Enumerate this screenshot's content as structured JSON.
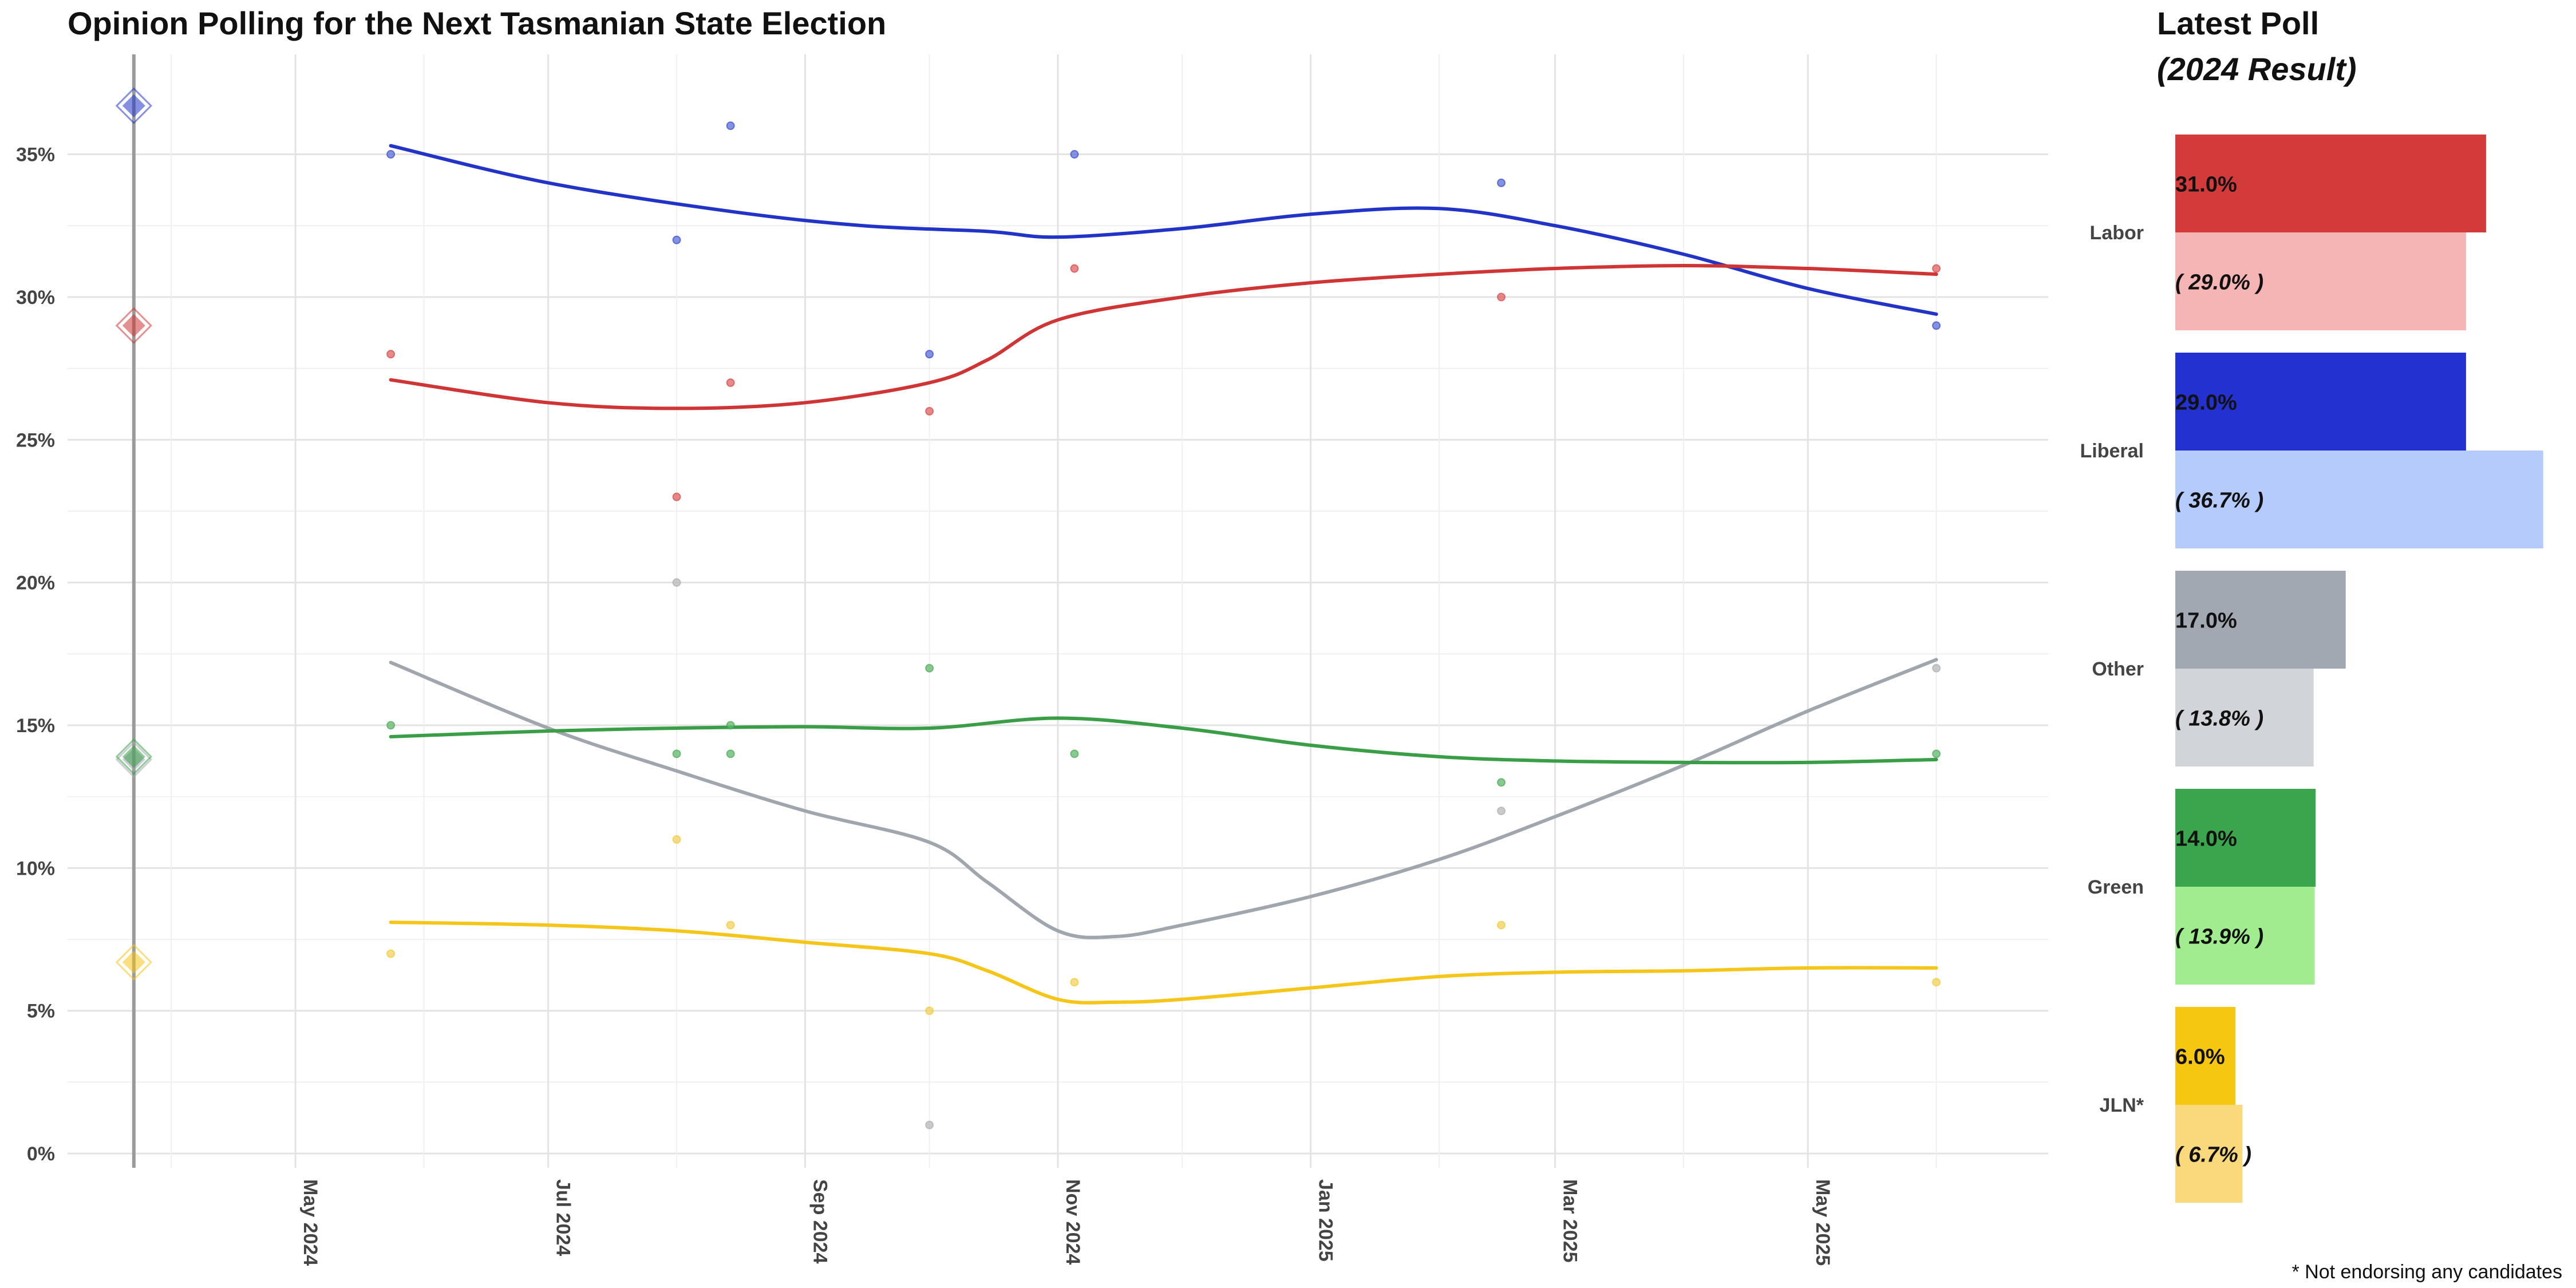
{
  "chart_data": {
    "type": "line",
    "title": "Opinion Polling for the Next Tasmanian State Election",
    "ylim": [
      -0.5,
      38.5
    ],
    "y_ticks": [
      0,
      5,
      10,
      15,
      20,
      25,
      30,
      35
    ],
    "y_tick_labels": [
      "0%",
      "5%",
      "10%",
      "15%",
      "20%",
      "25%",
      "30%",
      "35%"
    ],
    "x_domain": [
      "2024-03-07",
      "2025-06-28"
    ],
    "x_ticks": [
      "2024-05-01",
      "2024-07-01",
      "2024-09-01",
      "2024-11-01",
      "2025-01-01",
      "2025-03-01",
      "2025-05-01"
    ],
    "x_tick_labels": [
      "May 2024",
      "Jul 2024",
      "Sep 2024",
      "Nov 2024",
      "Jan 2025",
      "Mar 2025",
      "May 2025"
    ],
    "x_minor_ticks": [
      "2024-04-01",
      "2024-06-01",
      "2024-08-01",
      "2024-10-01",
      "2024-12-01",
      "2025-02-01",
      "2025-04-01",
      "2025-06-01"
    ],
    "grid": true,
    "election_date": "2024-03-23",
    "series": [
      {
        "name": "Liberal",
        "color": "#2234c8",
        "point_color": "#5a6fd8",
        "result": 36.7,
        "points": [
          [
            "2024-05-24",
            35
          ],
          [
            "2024-08-01",
            32
          ],
          [
            "2024-08-14",
            36
          ],
          [
            "2024-10-01",
            28
          ],
          [
            "2024-11-05",
            35
          ],
          [
            "2025-02-16",
            34
          ],
          [
            "2025-06-01",
            29
          ]
        ],
        "trend": [
          [
            "2024-05-24",
            35.3
          ],
          [
            "2024-07-01",
            34.0
          ],
          [
            "2024-08-14",
            33.0
          ],
          [
            "2024-09-15",
            32.5
          ],
          [
            "2024-10-15",
            32.3
          ],
          [
            "2024-11-01",
            32.1
          ],
          [
            "2024-12-01",
            32.4
          ],
          [
            "2025-01-01",
            32.9
          ],
          [
            "2025-02-01",
            33.1
          ],
          [
            "2025-03-01",
            32.5
          ],
          [
            "2025-04-01",
            31.5
          ],
          [
            "2025-05-01",
            30.3
          ],
          [
            "2025-06-01",
            29.4
          ]
        ]
      },
      {
        "name": "Labor",
        "color": "#d03535",
        "point_color": "#e06060",
        "result": 29.0,
        "points": [
          [
            "2024-05-24",
            28
          ],
          [
            "2024-08-01",
            23
          ],
          [
            "2024-08-14",
            27
          ],
          [
            "2024-10-01",
            26
          ],
          [
            "2024-11-05",
            31
          ],
          [
            "2025-02-16",
            30
          ],
          [
            "2025-06-01",
            31
          ]
        ],
        "trend": [
          [
            "2024-05-24",
            27.1
          ],
          [
            "2024-07-01",
            26.3
          ],
          [
            "2024-08-01",
            26.1
          ],
          [
            "2024-09-01",
            26.3
          ],
          [
            "2024-10-01",
            27.0
          ],
          [
            "2024-10-15",
            27.8
          ],
          [
            "2024-11-01",
            29.2
          ],
          [
            "2024-12-01",
            30.0
          ],
          [
            "2025-01-01",
            30.5
          ],
          [
            "2025-02-01",
            30.8
          ],
          [
            "2025-03-01",
            31.0
          ],
          [
            "2025-04-01",
            31.1
          ],
          [
            "2025-05-01",
            31.0
          ],
          [
            "2025-06-01",
            30.8
          ]
        ]
      },
      {
        "name": "Other",
        "color": "#a0a6ad",
        "point_color": "#b8b8b8",
        "result": 13.8,
        "points": [
          [
            "2024-08-01",
            20
          ],
          [
            "2024-10-01",
            1
          ],
          [
            "2025-02-16",
            12
          ],
          [
            "2025-06-01",
            17
          ]
        ],
        "trend": [
          [
            "2024-05-24",
            17.2
          ],
          [
            "2024-07-01",
            14.9
          ],
          [
            "2024-08-01",
            13.4
          ],
          [
            "2024-09-01",
            12.0
          ],
          [
            "2024-10-01",
            10.9
          ],
          [
            "2024-10-15",
            9.5
          ],
          [
            "2024-11-01",
            7.8
          ],
          [
            "2024-11-15",
            7.6
          ],
          [
            "2024-12-01",
            8.0
          ],
          [
            "2025-01-01",
            9.0
          ],
          [
            "2025-02-01",
            10.3
          ],
          [
            "2025-03-01",
            11.8
          ],
          [
            "2025-04-01",
            13.6
          ],
          [
            "2025-05-01",
            15.5
          ],
          [
            "2025-06-01",
            17.3
          ]
        ]
      },
      {
        "name": "Green",
        "color": "#3a9e47",
        "point_color": "#5fb86a",
        "result": 13.9,
        "points": [
          [
            "2024-05-24",
            15
          ],
          [
            "2024-08-01",
            14
          ],
          [
            "2024-08-14",
            15
          ],
          [
            "2024-08-14",
            14
          ],
          [
            "2024-10-01",
            17
          ],
          [
            "2024-11-05",
            14
          ],
          [
            "2025-02-16",
            13
          ],
          [
            "2025-06-01",
            14
          ]
        ],
        "trend": [
          [
            "2024-05-24",
            14.6
          ],
          [
            "2024-07-01",
            14.8
          ],
          [
            "2024-08-01",
            14.9
          ],
          [
            "2024-09-01",
            14.95
          ],
          [
            "2024-10-01",
            14.9
          ],
          [
            "2024-11-01",
            15.25
          ],
          [
            "2024-12-01",
            14.9
          ],
          [
            "2025-01-01",
            14.3
          ],
          [
            "2025-02-01",
            13.9
          ],
          [
            "2025-03-01",
            13.75
          ],
          [
            "2025-04-01",
            13.7
          ],
          [
            "2025-05-01",
            13.7
          ],
          [
            "2025-06-01",
            13.8
          ]
        ]
      },
      {
        "name": "JLN*",
        "color": "#f5c518",
        "point_color": "#f0d060",
        "result": 6.7,
        "points": [
          [
            "2024-05-24",
            7
          ],
          [
            "2024-08-01",
            11
          ],
          [
            "2024-08-14",
            8
          ],
          [
            "2024-10-01",
            5
          ],
          [
            "2024-11-05",
            6
          ],
          [
            "2025-02-16",
            8
          ],
          [
            "2025-06-01",
            6
          ]
        ],
        "trend": [
          [
            "2024-05-24",
            8.1
          ],
          [
            "2024-07-01",
            8.0
          ],
          [
            "2024-08-01",
            7.8
          ],
          [
            "2024-09-01",
            7.4
          ],
          [
            "2024-10-01",
            7.0
          ],
          [
            "2024-10-15",
            6.4
          ],
          [
            "2024-11-01",
            5.4
          ],
          [
            "2024-11-15",
            5.3
          ],
          [
            "2024-12-01",
            5.4
          ],
          [
            "2025-01-01",
            5.8
          ],
          [
            "2025-02-01",
            6.2
          ],
          [
            "2025-03-01",
            6.35
          ],
          [
            "2025-04-01",
            6.4
          ],
          [
            "2025-05-01",
            6.5
          ],
          [
            "2025-06-01",
            6.5
          ]
        ]
      }
    ]
  },
  "side_panel": {
    "title": "Latest Poll",
    "subtitle": "(2024 Result)",
    "xlim": [
      0,
      37
    ],
    "parties": [
      {
        "name": "Labor",
        "latest": 31.0,
        "latest_label": "31.0%",
        "result": 29.0,
        "result_label": "( 29.0% )",
        "latest_color": "#d33a3a",
        "result_color": "#f5b5b5"
      },
      {
        "name": "Liberal",
        "latest": 29.0,
        "latest_label": "29.0%",
        "result": 36.7,
        "result_label": "( 36.7% )",
        "latest_color": "#2231cf",
        "result_color": "#b5cbfb"
      },
      {
        "name": "Other",
        "latest": 17.0,
        "latest_label": "17.0%",
        "result": 13.8,
        "result_label": "( 13.8% )",
        "latest_color": "#a2a8b1",
        "result_color": "#d1d4d8"
      },
      {
        "name": "Green",
        "latest": 14.0,
        "latest_label": "14.0%",
        "result": 13.9,
        "result_label": "( 13.9% )",
        "latest_color": "#3aa54c",
        "result_color": "#a0ec8e"
      },
      {
        "name": "JLN*",
        "latest": 6.0,
        "latest_label": "6.0%",
        "result": 6.7,
        "result_label": "( 6.7% )",
        "latest_color": "#f5c710",
        "result_color": "#fad97c"
      }
    ]
  },
  "footnote": "* Not endorsing any candidates"
}
